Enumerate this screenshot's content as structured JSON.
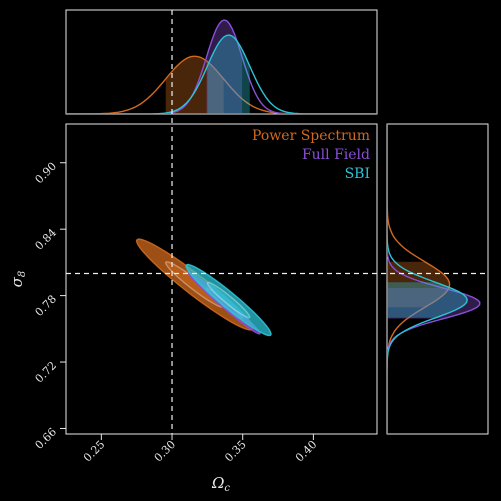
{
  "chart_data": {
    "type": "scatter",
    "title": "",
    "xlabel": "Ω_c",
    "ylabel": "σ_8",
    "xlim": [
      0.225,
      0.445
    ],
    "ylim": [
      0.655,
      0.935
    ],
    "xticks": [
      0.25,
      0.3,
      0.35,
      0.4
    ],
    "xtick_labels": [
      "0.25",
      "0.30",
      "0.35",
      "0.40"
    ],
    "yticks": [
      0.66,
      0.72,
      0.78,
      0.84,
      0.9
    ],
    "ytick_labels": [
      "0.66",
      "0.72",
      "0.78",
      "0.84",
      "0.90"
    ],
    "reference": {
      "x": 0.3,
      "y": 0.8
    },
    "grid": false,
    "legend_position": "top-right",
    "background": "#000000",
    "axis_color": "#e8e8e8",
    "series": [
      {
        "name": "Power Spectrum",
        "color": "#d2691e",
        "mean": [
          0.316,
          0.79
        ],
        "sigma_x": 0.0205,
        "sigma_y": 0.0205,
        "correlation": -0.96,
        "contour_sigmas": [
          1,
          2
        ]
      },
      {
        "name": "Full Field",
        "color": "#8a4fd8",
        "mean": [
          0.337,
          0.773
        ],
        "sigma_x": 0.0126,
        "sigma_y": 0.0138,
        "correlation": -0.985,
        "contour_sigmas": [
          1,
          2
        ]
      },
      {
        "name": "SBI",
        "color": "#2cc3d6",
        "mean": [
          0.34,
          0.776
        ],
        "sigma_x": 0.015,
        "sigma_y": 0.016,
        "correlation": -0.96,
        "contour_sigmas": [
          1,
          2
        ]
      }
    ]
  }
}
